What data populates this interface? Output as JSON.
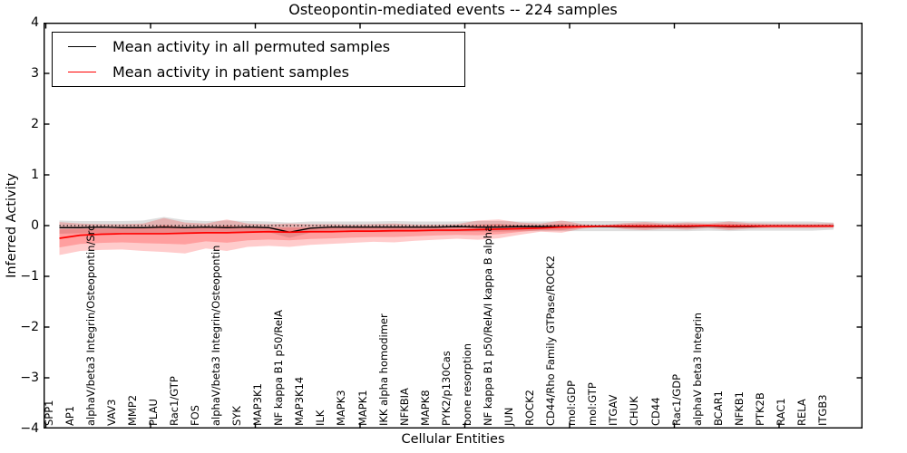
{
  "chart_data": {
    "type": "line",
    "title": "Osteopontin-mediated events -- 224 samples",
    "xlabel": "Cellular Entities",
    "ylabel": "Inferred Activity",
    "ylim": [
      -4,
      4
    ],
    "yticks": [
      4,
      3,
      2,
      1,
      0,
      -1,
      -2,
      -3,
      -4
    ],
    "ytick_labels": [
      "4",
      "3",
      "2",
      "1",
      "0",
      "−1",
      "−2",
      "−3",
      "−4"
    ],
    "grid": false,
    "legend_position": "upper left",
    "zero_line": {
      "value": 0,
      "style": "dotted",
      "color": "#000000"
    },
    "categories": [
      "SPP1",
      "AP1",
      "alphaV/beta3 Integrin/Osteopontin/Src",
      "VAV3",
      "MMP2",
      "PLAU",
      "Rac1/GTP",
      "FOS",
      "alphaV/beta3 Integrin/Osteopontin",
      "SYK",
      "MAP3K1",
      "NF kappa B1 p50/RelA",
      "MAP3K14",
      "ILK",
      "MAPK3",
      "MAPK1",
      "IKK alpha homodimer",
      "NFKBIA",
      "MAPK8",
      "PYK2/p130Cas",
      "bone resorption",
      "NF kappa B1 p50/RelA/I kappa B alpha",
      "JUN",
      "ROCK2",
      "CD44/Rho Family GTPase/ROCK2",
      "mol:GDP",
      "mol:GTP",
      "ITGAV",
      "CHUK",
      "CD44",
      "Rac1/GDP",
      "alphaV beta3 Integrin",
      "BCAR1",
      "NFKB1",
      "PTK2B",
      "RAC1",
      "RELA",
      "ITGB3"
    ],
    "series": [
      {
        "name": "Mean activity in all permuted samples",
        "color": "#000000",
        "band_color": "rgba(0,0,0,0.13)",
        "values": [
          -0.04,
          -0.04,
          -0.03,
          -0.04,
          -0.04,
          -0.03,
          -0.04,
          -0.03,
          -0.04,
          -0.03,
          -0.04,
          -0.13,
          -0.05,
          -0.03,
          -0.03,
          -0.03,
          -0.03,
          -0.03,
          -0.03,
          -0.02,
          -0.03,
          -0.03,
          -0.02,
          -0.02,
          -0.02,
          -0.02,
          -0.02,
          -0.02,
          -0.02,
          -0.02,
          -0.02,
          -0.01,
          -0.02,
          -0.02,
          -0.01,
          -0.01,
          -0.01,
          -0.01
        ],
        "band_upper": [
          0.1,
          0.09,
          0.09,
          0.09,
          0.1,
          0.17,
          0.11,
          0.09,
          0.1,
          0.09,
          0.08,
          0.06,
          0.08,
          0.08,
          0.08,
          0.08,
          0.09,
          0.08,
          0.08,
          0.08,
          0.09,
          0.09,
          0.08,
          0.08,
          0.09,
          0.09,
          0.09,
          0.09,
          0.09,
          0.08,
          0.08,
          0.08,
          0.09,
          0.08,
          0.08,
          0.08,
          0.08,
          0.06
        ],
        "band_lower": [
          -0.16,
          -0.15,
          -0.15,
          -0.14,
          -0.15,
          -0.15,
          -0.15,
          -0.14,
          -0.14,
          -0.13,
          -0.13,
          -0.24,
          -0.14,
          -0.13,
          -0.13,
          -0.13,
          -0.13,
          -0.12,
          -0.12,
          -0.12,
          -0.12,
          -0.12,
          -0.11,
          -0.11,
          -0.11,
          -0.11,
          -0.11,
          -0.11,
          -0.11,
          -0.11,
          -0.11,
          -0.1,
          -0.11,
          -0.1,
          -0.1,
          -0.1,
          -0.1,
          -0.08
        ]
      },
      {
        "name": "Mean activity in patient samples",
        "color": "#ff0000",
        "band_color": "rgba(255,0,0,0.20)",
        "inner_band_color": "rgba(255,0,0,0.22)",
        "inner_band_ratio": 0.55,
        "values": [
          -0.25,
          -0.19,
          -0.17,
          -0.16,
          -0.16,
          -0.16,
          -0.15,
          -0.14,
          -0.14,
          -0.13,
          -0.12,
          -0.13,
          -0.12,
          -0.12,
          -0.11,
          -0.11,
          -0.1,
          -0.1,
          -0.09,
          -0.09,
          -0.08,
          -0.07,
          -0.06,
          -0.05,
          -0.03,
          -0.02,
          -0.01,
          -0.01,
          -0.01,
          -0.01,
          -0.01,
          0.0,
          -0.01,
          -0.01,
          -0.01,
          -0.01,
          -0.01,
          -0.01
        ],
        "band_upper": [
          0.07,
          0.04,
          0.03,
          0.03,
          0.04,
          0.15,
          0.06,
          0.04,
          0.12,
          0.04,
          0.03,
          0.04,
          0.03,
          0.03,
          0.02,
          0.03,
          0.04,
          0.02,
          0.02,
          0.03,
          0.1,
          0.12,
          0.06,
          0.04,
          0.1,
          0.03,
          0.01,
          0.05,
          0.07,
          0.04,
          0.06,
          0.04,
          0.08,
          0.05,
          0.04,
          0.04,
          0.04,
          0.05
        ],
        "band_lower": [
          -0.58,
          -0.5,
          -0.48,
          -0.47,
          -0.5,
          -0.52,
          -0.55,
          -0.45,
          -0.5,
          -0.42,
          -0.4,
          -0.42,
          -0.38,
          -0.36,
          -0.34,
          -0.32,
          -0.33,
          -0.3,
          -0.28,
          -0.26,
          -0.28,
          -0.25,
          -0.18,
          -0.12,
          -0.14,
          -0.06,
          -0.02,
          -0.07,
          -0.09,
          -0.06,
          -0.08,
          -0.05,
          -0.09,
          -0.06,
          -0.05,
          -0.05,
          -0.05,
          -0.04
        ]
      }
    ]
  }
}
